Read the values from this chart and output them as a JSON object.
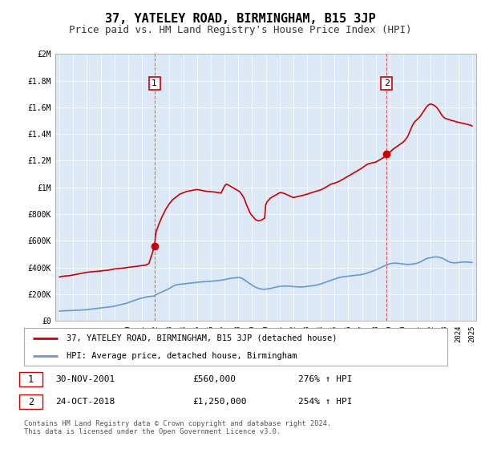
{
  "title": "37, YATELEY ROAD, BIRMINGHAM, B15 3JP",
  "subtitle": "Price paid vs. HM Land Registry's House Price Index (HPI)",
  "title_fontsize": 11,
  "subtitle_fontsize": 9,
  "background_color": "#ffffff",
  "plot_bg_color": "#dce8f5",
  "ylim": [
    0,
    2000000
  ],
  "yticks": [
    0,
    200000,
    400000,
    600000,
    800000,
    1000000,
    1200000,
    1400000,
    1600000,
    1800000,
    2000000
  ],
  "ytick_labels": [
    "£0",
    "£200K",
    "£400K",
    "£600K",
    "£800K",
    "£1M",
    "£1.2M",
    "£1.4M",
    "£1.6M",
    "£1.8M",
    "£2M"
  ],
  "xlim_start": 1994.7,
  "xlim_end": 2025.3,
  "transaction1": {
    "date_num": 2001.917,
    "price": 560000,
    "label": "1"
  },
  "transaction2": {
    "date_num": 2018.792,
    "price": 1250000,
    "label": "2"
  },
  "legend_entries": [
    "37, YATELEY ROAD, BIRMINGHAM, B15 3JP (detached house)",
    "HPI: Average price, detached house, Birmingham"
  ],
  "table_rows": [
    [
      "1",
      "30-NOV-2001",
      "£560,000",
      "276% ↑ HPI"
    ],
    [
      "2",
      "24-OCT-2018",
      "£1,250,000",
      "254% ↑ HPI"
    ]
  ],
  "footnote": "Contains HM Land Registry data © Crown copyright and database right 2024.\nThis data is licensed under the Open Government Licence v3.0.",
  "red_color": "#cc0000",
  "blue_color": "#6699cc",
  "vline_color": "#cc0000",
  "hpi_years": [
    1995.0,
    1995.083,
    1995.167,
    1995.25,
    1995.333,
    1995.417,
    1995.5,
    1995.583,
    1995.667,
    1995.75,
    1995.833,
    1995.917,
    1996.0,
    1996.083,
    1996.167,
    1996.25,
    1996.333,
    1996.417,
    1996.5,
    1996.583,
    1996.667,
    1996.75,
    1996.833,
    1996.917,
    1997.0,
    1997.083,
    1997.167,
    1997.25,
    1997.333,
    1997.417,
    1997.5,
    1997.583,
    1997.667,
    1997.75,
    1997.833,
    1997.917,
    1998.0,
    1998.083,
    1998.167,
    1998.25,
    1998.333,
    1998.417,
    1998.5,
    1998.583,
    1998.667,
    1998.75,
    1998.833,
    1998.917,
    1999.0,
    1999.083,
    1999.167,
    1999.25,
    1999.333,
    1999.417,
    1999.5,
    1999.583,
    1999.667,
    1999.75,
    1999.833,
    1999.917,
    2000.0,
    2000.083,
    2000.167,
    2000.25,
    2000.333,
    2000.417,
    2000.5,
    2000.583,
    2000.667,
    2000.75,
    2000.833,
    2000.917,
    2001.0,
    2001.083,
    2001.167,
    2001.25,
    2001.333,
    2001.417,
    2001.5,
    2001.583,
    2001.667,
    2001.75,
    2001.833,
    2001.917,
    2002.0,
    2002.083,
    2002.167,
    2002.25,
    2002.333,
    2002.417,
    2002.5,
    2002.583,
    2002.667,
    2002.75,
    2002.833,
    2002.917,
    2003.0,
    2003.083,
    2003.167,
    2003.25,
    2003.333,
    2003.417,
    2003.5,
    2003.583,
    2003.667,
    2003.75,
    2003.833,
    2003.917,
    2004.0,
    2004.083,
    2004.167,
    2004.25,
    2004.333,
    2004.417,
    2004.5,
    2004.583,
    2004.667,
    2004.75,
    2004.833,
    2004.917,
    2005.0,
    2005.083,
    2005.167,
    2005.25,
    2005.333,
    2005.417,
    2005.5,
    2005.583,
    2005.667,
    2005.75,
    2005.833,
    2005.917,
    2006.0,
    2006.083,
    2006.167,
    2006.25,
    2006.333,
    2006.417,
    2006.5,
    2006.583,
    2006.667,
    2006.75,
    2006.833,
    2006.917,
    2007.0,
    2007.083,
    2007.167,
    2007.25,
    2007.333,
    2007.417,
    2007.5,
    2007.583,
    2007.667,
    2007.75,
    2007.833,
    2007.917,
    2008.0,
    2008.083,
    2008.167,
    2008.25,
    2008.333,
    2008.417,
    2008.5,
    2008.583,
    2008.667,
    2008.75,
    2008.833,
    2008.917,
    2009.0,
    2009.083,
    2009.167,
    2009.25,
    2009.333,
    2009.417,
    2009.5,
    2009.583,
    2009.667,
    2009.75,
    2009.833,
    2009.917,
    2010.0,
    2010.083,
    2010.167,
    2010.25,
    2010.333,
    2010.417,
    2010.5,
    2010.583,
    2010.667,
    2010.75,
    2010.833,
    2010.917,
    2011.0,
    2011.083,
    2011.167,
    2011.25,
    2011.333,
    2011.417,
    2011.5,
    2011.583,
    2011.667,
    2011.75,
    2011.833,
    2011.917,
    2012.0,
    2012.083,
    2012.167,
    2012.25,
    2012.333,
    2012.417,
    2012.5,
    2012.583,
    2012.667,
    2012.75,
    2012.833,
    2012.917,
    2013.0,
    2013.083,
    2013.167,
    2013.25,
    2013.333,
    2013.417,
    2013.5,
    2013.583,
    2013.667,
    2013.75,
    2013.833,
    2013.917,
    2014.0,
    2014.083,
    2014.167,
    2014.25,
    2014.333,
    2014.417,
    2014.5,
    2014.583,
    2014.667,
    2014.75,
    2014.833,
    2014.917,
    2015.0,
    2015.083,
    2015.167,
    2015.25,
    2015.333,
    2015.417,
    2015.5,
    2015.583,
    2015.667,
    2015.75,
    2015.833,
    2015.917,
    2016.0,
    2016.083,
    2016.167,
    2016.25,
    2016.333,
    2016.417,
    2016.5,
    2016.583,
    2016.667,
    2016.75,
    2016.833,
    2016.917,
    2017.0,
    2017.083,
    2017.167,
    2017.25,
    2017.333,
    2017.417,
    2017.5,
    2017.583,
    2017.667,
    2017.75,
    2017.833,
    2017.917,
    2018.0,
    2018.083,
    2018.167,
    2018.25,
    2018.333,
    2018.417,
    2018.5,
    2018.583,
    2018.667,
    2018.75,
    2018.833,
    2018.917,
    2019.0,
    2019.083,
    2019.167,
    2019.25,
    2019.333,
    2019.417,
    2019.5,
    2019.583,
    2019.667,
    2019.75,
    2019.833,
    2019.917,
    2020.0,
    2020.083,
    2020.167,
    2020.25,
    2020.333,
    2020.417,
    2020.5,
    2020.583,
    2020.667,
    2020.75,
    2020.833,
    2020.917,
    2021.0,
    2021.083,
    2021.167,
    2021.25,
    2021.333,
    2021.417,
    2021.5,
    2021.583,
    2021.667,
    2021.75,
    2021.833,
    2021.917,
    2022.0,
    2022.083,
    2022.167,
    2022.25,
    2022.333,
    2022.417,
    2022.5,
    2022.583,
    2022.667,
    2022.75,
    2022.833,
    2022.917,
    2023.0,
    2023.083,
    2023.167,
    2023.25,
    2023.333,
    2023.417,
    2023.5,
    2023.583,
    2023.667,
    2023.75,
    2023.833,
    2023.917,
    2024.0,
    2024.083,
    2024.167,
    2024.25,
    2024.333,
    2024.417,
    2024.5,
    2024.583,
    2024.667,
    2024.75,
    2024.833,
    2024.917,
    2025.0
  ],
  "hpi_values": [
    75000,
    75500,
    76000,
    76200,
    76500,
    76800,
    77000,
    77200,
    77500,
    77800,
    78000,
    78200,
    79000,
    79500,
    80000,
    80500,
    81000,
    81500,
    82000,
    82500,
    83000,
    83500,
    84000,
    84500,
    86000,
    87000,
    88000,
    89000,
    90000,
    91000,
    92000,
    93000,
    94000,
    95000,
    96000,
    97000,
    98000,
    99000,
    100000,
    101000,
    102000,
    103000,
    104000,
    105000,
    106000,
    107000,
    108000,
    109000,
    112000,
    114000,
    116000,
    118000,
    120000,
    122000,
    124000,
    126000,
    128000,
    130000,
    132000,
    134000,
    138000,
    141000,
    144000,
    147000,
    150000,
    153000,
    156000,
    159000,
    162000,
    165000,
    168000,
    170000,
    172000,
    174000,
    176000,
    178000,
    180000,
    182000,
    183000,
    184000,
    185000,
    186000,
    187000,
    188000,
    196000,
    200000,
    204000,
    208000,
    212000,
    216000,
    220000,
    224000,
    228000,
    232000,
    236000,
    240000,
    245000,
    250000,
    255000,
    260000,
    265000,
    268000,
    270000,
    272000,
    274000,
    275000,
    276000,
    277000,
    278000,
    279000,
    280000,
    281000,
    282000,
    283000,
    284000,
    285000,
    286000,
    287000,
    288000,
    289000,
    290000,
    291000,
    292000,
    292500,
    293000,
    293500,
    294000,
    294500,
    295000,
    295500,
    296000,
    296500,
    297000,
    298000,
    299000,
    300000,
    301000,
    302000,
    303000,
    304000,
    305000,
    306000,
    307000,
    308000,
    310000,
    312000,
    314000,
    316000,
    318000,
    319000,
    320000,
    321000,
    322000,
    323000,
    324000,
    325000,
    326000,
    325000,
    323000,
    320000,
    316000,
    311000,
    305000,
    298000,
    292000,
    286000,
    280000,
    274000,
    268000,
    263000,
    258000,
    254000,
    250000,
    247000,
    244000,
    242000,
    240000,
    239000,
    238000,
    238000,
    239000,
    240000,
    241000,
    242000,
    244000,
    246000,
    248000,
    250000,
    252000,
    254000,
    256000,
    258000,
    259000,
    260000,
    260500,
    261000,
    261500,
    262000,
    262000,
    262000,
    261500,
    261000,
    260000,
    259000,
    258000,
    257000,
    256500,
    256000,
    255500,
    255000,
    255000,
    255000,
    255500,
    256000,
    257000,
    258000,
    259000,
    260000,
    261000,
    262000,
    263000,
    264000,
    265000,
    267000,
    269000,
    271000,
    273000,
    275000,
    278000,
    281000,
    284000,
    287000,
    290000,
    293000,
    296000,
    299000,
    302000,
    305000,
    308000,
    311000,
    314000,
    317000,
    320000,
    323000,
    325000,
    327000,
    329000,
    331000,
    332000,
    333000,
    334000,
    335000,
    336000,
    337000,
    338000,
    339000,
    340000,
    341000,
    342000,
    343000,
    344000,
    345000,
    346000,
    347000,
    349000,
    351000,
    353000,
    355000,
    358000,
    361000,
    364000,
    367000,
    370000,
    373000,
    376000,
    379000,
    383000,
    387000,
    391000,
    395000,
    399000,
    403000,
    407000,
    411000,
    415000,
    419000,
    422000,
    425000,
    428000,
    430000,
    431000,
    432000,
    433000,
    433000,
    433000,
    432000,
    431000,
    430000,
    429000,
    428000,
    427000,
    426000,
    425000,
    424000,
    424000,
    424000,
    425000,
    426000,
    427000,
    428000,
    429000,
    431000,
    433000,
    436000,
    439000,
    443000,
    447000,
    452000,
    457000,
    462000,
    466000,
    469000,
    471000,
    472000,
    474000,
    476000,
    478000,
    479000,
    480000,
    480000,
    479000,
    478000,
    476000,
    473000,
    470000,
    467000,
    462000,
    457000,
    452000,
    447000,
    443000,
    440000,
    438000,
    437000,
    436000,
    436000,
    436000,
    437000,
    438000,
    439000,
    440000,
    441000,
    442000,
    442000,
    442000,
    442000,
    442000,
    441000,
    440000,
    439000,
    438000
  ],
  "prop_years": [
    1995.0,
    1995.25,
    1995.5,
    1995.75,
    1996.0,
    1996.25,
    1996.5,
    1996.75,
    1997.0,
    1997.25,
    1997.5,
    1997.75,
    1998.0,
    1998.25,
    1998.5,
    1998.75,
    1999.0,
    1999.25,
    1999.5,
    1999.75,
    2000.0,
    2000.25,
    2000.5,
    2000.75,
    2001.0,
    2001.25,
    2001.5,
    2001.917,
    2002.0,
    2002.25,
    2002.5,
    2002.75,
    2003.0,
    2003.25,
    2003.5,
    2003.75,
    2004.0,
    2004.25,
    2004.5,
    2004.75,
    2005.0,
    2005.25,
    2005.5,
    2005.75,
    2006.0,
    2006.25,
    2006.5,
    2006.75,
    2007.0,
    2007.083,
    2007.167,
    2007.25,
    2007.333,
    2007.417,
    2007.5,
    2007.583,
    2007.667,
    2007.75,
    2007.833,
    2007.917,
    2008.0,
    2008.083,
    2008.167,
    2008.25,
    2008.333,
    2008.417,
    2008.5,
    2008.583,
    2008.667,
    2008.75,
    2008.833,
    2008.917,
    2009.0,
    2009.083,
    2009.167,
    2009.25,
    2009.333,
    2009.417,
    2009.5,
    2009.583,
    2009.667,
    2009.75,
    2009.833,
    2009.917,
    2010.0,
    2010.083,
    2010.167,
    2010.25,
    2010.333,
    2010.417,
    2010.5,
    2010.583,
    2010.667,
    2010.75,
    2010.833,
    2010.917,
    2011.0,
    2011.083,
    2011.167,
    2011.25,
    2011.333,
    2011.417,
    2011.5,
    2011.583,
    2011.667,
    2011.75,
    2011.833,
    2011.917,
    2012.0,
    2012.25,
    2012.5,
    2012.75,
    2013.0,
    2013.25,
    2013.5,
    2013.75,
    2014.0,
    2014.083,
    2014.167,
    2014.25,
    2014.333,
    2014.417,
    2014.5,
    2014.583,
    2014.667,
    2014.75,
    2014.833,
    2014.917,
    2015.0,
    2015.083,
    2015.167,
    2015.25,
    2015.333,
    2015.417,
    2015.5,
    2015.583,
    2015.667,
    2015.75,
    2015.833,
    2015.917,
    2016.0,
    2016.083,
    2016.167,
    2016.25,
    2016.333,
    2016.417,
    2016.5,
    2016.583,
    2016.667,
    2016.75,
    2016.833,
    2016.917,
    2017.0,
    2017.083,
    2017.167,
    2017.25,
    2017.333,
    2017.417,
    2017.5,
    2017.583,
    2017.667,
    2017.75,
    2017.833,
    2017.917,
    2018.0,
    2018.083,
    2018.167,
    2018.25,
    2018.333,
    2018.417,
    2018.5,
    2018.583,
    2018.667,
    2018.75,
    2018.792,
    2019.0,
    2019.083,
    2019.167,
    2019.25,
    2019.333,
    2019.417,
    2019.5,
    2019.583,
    2019.667,
    2019.75,
    2019.833,
    2019.917,
    2020.0,
    2020.083,
    2020.167,
    2020.25,
    2020.333,
    2020.417,
    2020.5,
    2020.583,
    2020.667,
    2020.75,
    2020.833,
    2020.917,
    2021.0,
    2021.083,
    2021.167,
    2021.25,
    2021.333,
    2021.417,
    2021.5,
    2021.583,
    2021.667,
    2021.75,
    2021.833,
    2021.917,
    2022.0,
    2022.083,
    2022.167,
    2022.25,
    2022.333,
    2022.417,
    2022.5,
    2022.583,
    2022.667,
    2022.75,
    2022.833,
    2022.917,
    2023.0,
    2023.083,
    2023.167,
    2023.25,
    2023.333,
    2023.417,
    2023.5,
    2023.583,
    2023.667,
    2023.75,
    2023.833,
    2023.917,
    2024.0,
    2024.083,
    2024.167,
    2024.25,
    2024.333,
    2024.417,
    2024.5,
    2024.583,
    2024.667,
    2024.75,
    2024.917,
    2025.0
  ],
  "prop_values": [
    330000,
    335000,
    338000,
    340000,
    345000,
    350000,
    355000,
    360000,
    365000,
    368000,
    370000,
    372000,
    375000,
    378000,
    380000,
    385000,
    390000,
    392000,
    395000,
    398000,
    402000,
    405000,
    408000,
    412000,
    415000,
    418000,
    430000,
    560000,
    660000,
    730000,
    790000,
    840000,
    880000,
    910000,
    930000,
    950000,
    960000,
    970000,
    975000,
    980000,
    985000,
    980000,
    975000,
    970000,
    968000,
    966000,
    962000,
    958000,
    1010000,
    1020000,
    1025000,
    1020000,
    1015000,
    1010000,
    1005000,
    1000000,
    995000,
    990000,
    985000,
    980000,
    975000,
    970000,
    960000,
    950000,
    935000,
    920000,
    900000,
    875000,
    855000,
    835000,
    815000,
    800000,
    790000,
    780000,
    770000,
    760000,
    755000,
    752000,
    750000,
    752000,
    755000,
    760000,
    765000,
    770000,
    870000,
    890000,
    900000,
    910000,
    920000,
    925000,
    930000,
    935000,
    940000,
    945000,
    950000,
    955000,
    960000,
    962000,
    960000,
    958000,
    955000,
    952000,
    948000,
    944000,
    940000,
    936000,
    932000,
    928000,
    924000,
    930000,
    936000,
    942000,
    950000,
    958000,
    966000,
    974000,
    982000,
    986000,
    990000,
    995000,
    1000000,
    1005000,
    1010000,
    1015000,
    1020000,
    1025000,
    1028000,
    1030000,
    1032000,
    1035000,
    1038000,
    1042000,
    1046000,
    1050000,
    1055000,
    1060000,
    1065000,
    1070000,
    1075000,
    1080000,
    1085000,
    1090000,
    1095000,
    1100000,
    1105000,
    1110000,
    1115000,
    1120000,
    1125000,
    1130000,
    1135000,
    1140000,
    1145000,
    1152000,
    1158000,
    1164000,
    1170000,
    1175000,
    1178000,
    1180000,
    1182000,
    1184000,
    1186000,
    1188000,
    1190000,
    1195000,
    1200000,
    1205000,
    1210000,
    1215000,
    1220000,
    1225000,
    1230000,
    1235000,
    1250000,
    1260000,
    1270000,
    1278000,
    1285000,
    1292000,
    1298000,
    1304000,
    1310000,
    1316000,
    1322000,
    1328000,
    1334000,
    1340000,
    1350000,
    1360000,
    1370000,
    1385000,
    1405000,
    1425000,
    1445000,
    1465000,
    1480000,
    1492000,
    1500000,
    1508000,
    1516000,
    1525000,
    1535000,
    1548000,
    1562000,
    1575000,
    1588000,
    1600000,
    1610000,
    1618000,
    1622000,
    1625000,
    1622000,
    1618000,
    1614000,
    1608000,
    1600000,
    1590000,
    1578000,
    1565000,
    1550000,
    1538000,
    1528000,
    1520000,
    1516000,
    1513000,
    1510000,
    1508000,
    1505000,
    1502000,
    1500000,
    1498000,
    1495000,
    1492000,
    1490000,
    1488000,
    1486000,
    1484000,
    1482000,
    1480000,
    1478000,
    1476000,
    1474000,
    1472000,
    1470000,
    1465000,
    1460000
  ]
}
